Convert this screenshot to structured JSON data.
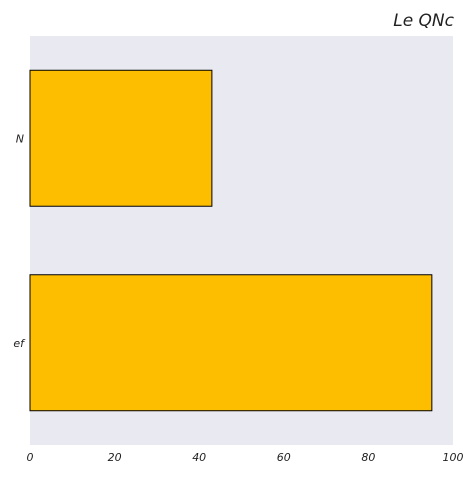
{
  "chart_data": {
    "type": "bar",
    "orientation": "horizontal",
    "title": "Le QNc",
    "title_align": "right",
    "xlabel": "",
    "ylabel": "",
    "categories": [
      "N",
      "ef"
    ],
    "values": [
      43,
      95
    ],
    "xlim": [
      0,
      100
    ],
    "x_ticks": [
      "0",
      "20",
      "40",
      "60",
      "80",
      "100"
    ],
    "x_tick_values": [
      0,
      20,
      40,
      60,
      80,
      100
    ],
    "grid": false,
    "legend": "none",
    "colors": {
      "bar_fill": "#FDBE00",
      "bar_edge": "#000000",
      "plot_background": "#E9E9F2"
    }
  }
}
